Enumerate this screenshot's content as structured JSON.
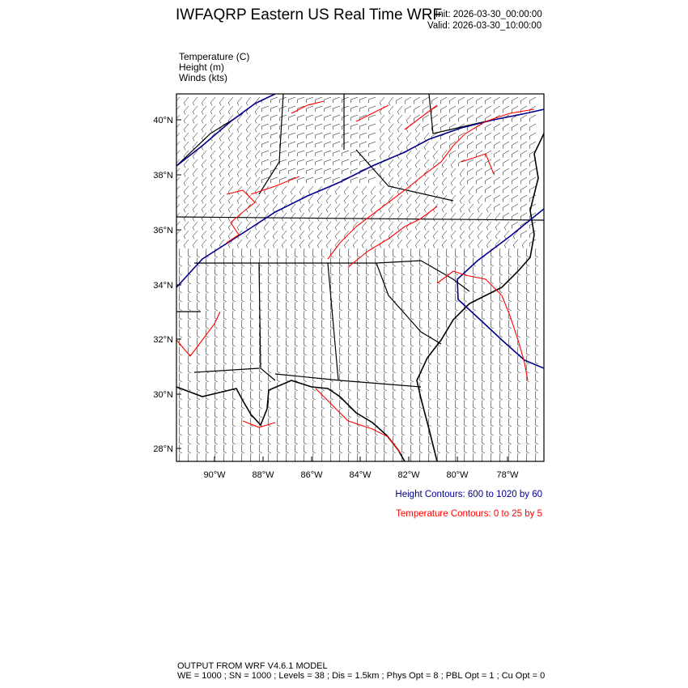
{
  "header": {
    "title": "IWFAQRP Eastern US Real Time WRF",
    "init": "Init: 2026-03-30_00:00:00",
    "valid": "Valid: 2026-03-30_10:00:00"
  },
  "variables": [
    "Temperature   (C)",
    "Height   (m)",
    "Winds   (kts)"
  ],
  "map": {
    "lat_labels": [
      "40°N",
      "38°N",
      "36°N",
      "34°N",
      "32°N",
      "30°N",
      "28°N"
    ],
    "lon_labels": [
      "90°W",
      "88°W",
      "86°W",
      "84°W",
      "82°W",
      "80°W",
      "78°W"
    ],
    "colors": {
      "height_contour": "#00008b",
      "temperature_contour": "#ff0000",
      "borders": "#000000",
      "wind_barbs": "#000000"
    }
  },
  "legend": {
    "height": "Height Contours: 600 to 1020 by 60",
    "temperature": "Temperature Contours: 0 to 25 by 5"
  },
  "footer": {
    "line1": "OUTPUT FROM WRF V4.6.1 MODEL",
    "line2": "WE = 1000 ; SN = 1000 ; Levels = 38 ; Dis = 1.5km ; Phys Opt = 8 ; PBL Opt = 1 ; Cu Opt = 0"
  }
}
